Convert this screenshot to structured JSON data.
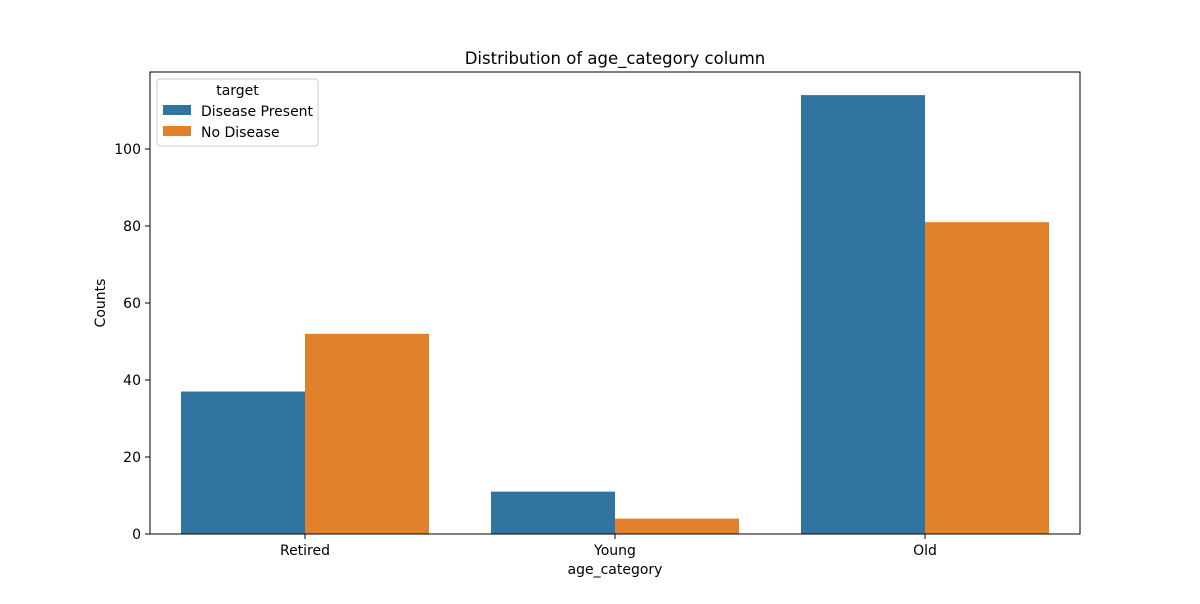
{
  "chart_data": {
    "type": "bar",
    "title": "Distribution of age_category column",
    "xlabel": "age_category",
    "ylabel": "Counts",
    "categories": [
      "Retired",
      "Young",
      "Old"
    ],
    "series": [
      {
        "name": "Disease Present",
        "values": [
          37,
          11,
          114
        ],
        "color": "#3274a1"
      },
      {
        "name": "No Disease",
        "values": [
          52,
          4,
          81
        ],
        "color": "#e1812c"
      }
    ],
    "ylim": [
      0,
      120
    ],
    "yticks": [
      0,
      20,
      40,
      60,
      80,
      100
    ],
    "legend": {
      "title": "target",
      "placement": "top-left"
    },
    "grid": false
  }
}
